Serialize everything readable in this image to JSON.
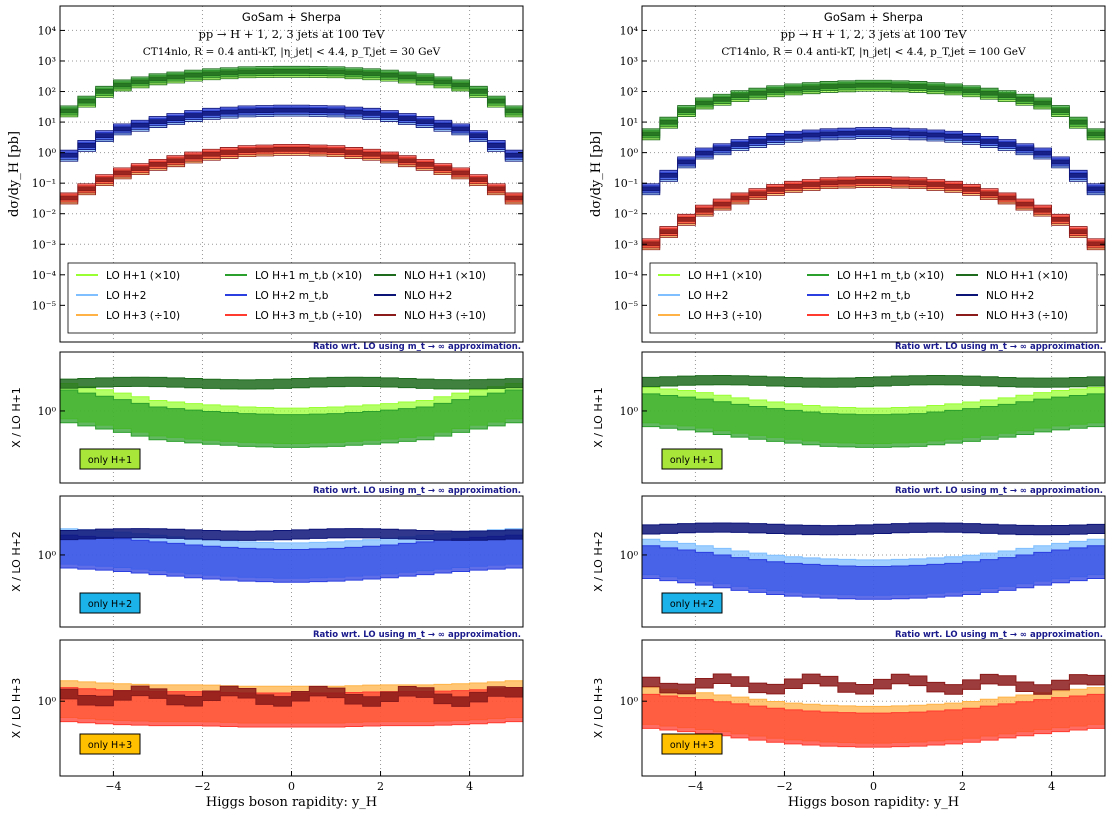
{
  "chart_data": [
    {
      "type": "area",
      "panel": "left",
      "title_lines": [
        "GoSam + Sherpa",
        "pp → H + 1, 2, 3 jets at 100 TeV",
        "CT14nlo, R = 0.4 anti-kT, |η_jet| < 4.4, p_T,jet = 30 GeV"
      ],
      "ylabel": "dσ/dy_H [pb]",
      "xlabel": "Higgs boson rapidity:  y_H",
      "xlim": [
        -5.2,
        5.2
      ],
      "x_ticks": [
        "−4",
        "−2",
        "0",
        "2",
        "4"
      ],
      "y_ticks": [
        "10⁴",
        "10³",
        "10²",
        "10¹",
        "10⁰",
        "10⁻¹",
        "10⁻²",
        "10⁻³",
        "10⁻⁴",
        "10⁻⁵"
      ],
      "log_ylim": [
        -6.2,
        4.8
      ],
      "legend_placement": "bottom",
      "legend": [
        "LO H+1 (×10)",
        "LO H+1 m_t,b (×10)",
        "NLO H+1 (×10)",
        "LO H+2",
        "LO H+2 m_t,b",
        "NLO H+2",
        "LO H+3 (÷10)",
        "LO H+3 m_t,b (÷10)",
        "NLO H+3 (÷10)"
      ],
      "x": [
        -5.0,
        -4.0,
        -3.0,
        -2.0,
        -1.0,
        0.0,
        1.0,
        2.0,
        3.0,
        4.0,
        5.0
      ],
      "series": [
        {
          "name": "NLO H+1 (×10)",
          "log_values": [
            1.35,
            2.15,
            2.4,
            2.55,
            2.63,
            2.65,
            2.63,
            2.55,
            2.4,
            2.15,
            1.35
          ]
        },
        {
          "name": "NLO H+2",
          "log_values": [
            -0.1,
            0.7,
            1.0,
            1.25,
            1.35,
            1.38,
            1.35,
            1.25,
            1.0,
            0.7,
            -0.1
          ]
        },
        {
          "name": "NLO H+3 (÷10)",
          "log_values": [
            -1.5,
            -0.75,
            -0.4,
            -0.1,
            0.05,
            0.1,
            0.05,
            -0.1,
            -0.4,
            -0.75,
            -1.5
          ]
        }
      ],
      "ratio_panels": [
        {
          "ylabel": "X / LO H+1",
          "tag": "only H+1",
          "label": "Ratio wrt. LO using m_t → ∞ approximation.",
          "log_values": [
            0.06,
            0.0,
            -0.07,
            -0.1,
            -0.12,
            -0.13,
            -0.12,
            -0.1,
            -0.07,
            0.0,
            0.06
          ],
          "nlo_ratio": 1.65
        },
        {
          "ylabel": "X / LO H+2",
          "tag": "only H+2",
          "label": "Ratio wrt. LO using m_t → ∞ approximation.",
          "log_values": [
            0.05,
            0.03,
            0.0,
            -0.03,
            -0.05,
            -0.06,
            -0.05,
            -0.03,
            0.0,
            0.03,
            0.05
          ],
          "nlo_ratio": 1.45
        },
        {
          "ylabel": "X / LO H+3",
          "tag": "only H+3",
          "label": "Ratio wrt. LO using m_t → ∞ approximation.",
          "log_values": [
            0.0,
            -0.02,
            -0.03,
            -0.03,
            -0.04,
            -0.04,
            -0.04,
            -0.03,
            -0.03,
            -0.02,
            0.0
          ],
          "nlo_ratio": 1.1
        }
      ]
    },
    {
      "type": "area",
      "panel": "right",
      "title_lines": [
        "GoSam + Sherpa",
        "pp → H + 1, 2, 3 jets at 100 TeV",
        "CT14nlo, R = 0.4 anti-kT, |η_jet| < 4.4, p_T,jet = 100 GeV"
      ],
      "ylabel": "dσ/dy_H [pb]",
      "xlabel": "Higgs boson rapidity:  y_H",
      "xlim": [
        -5.2,
        5.2
      ],
      "x_ticks": [
        "−4",
        "−2",
        "0",
        "2",
        "4"
      ],
      "y_ticks": [
        "10⁴",
        "10³",
        "10²",
        "10¹",
        "10⁰",
        "10⁻¹",
        "10⁻²",
        "10⁻³",
        "10⁻⁴",
        "10⁻⁵"
      ],
      "log_ylim": [
        -6.2,
        4.8
      ],
      "legend_placement": "bottom",
      "legend": [
        "LO H+1 (×10)",
        "LO H+1 m_t,b (×10)",
        "NLO H+1 (×10)",
        "LO H+2",
        "LO H+2 m_t,b",
        "NLO H+2",
        "LO H+3 (÷10)",
        "LO H+3 m_t,b (÷10)",
        "NLO H+3 (÷10)"
      ],
      "x": [
        -5.0,
        -4.0,
        -3.0,
        -2.0,
        -1.0,
        0.0,
        1.0,
        2.0,
        3.0,
        4.0,
        5.0
      ],
      "series": [
        {
          "name": "NLO H+1 (×10)",
          "log_values": [
            0.6,
            1.55,
            1.85,
            2.05,
            2.15,
            2.2,
            2.15,
            2.05,
            1.85,
            1.55,
            0.6
          ]
        },
        {
          "name": "NLO H+2",
          "log_values": [
            -1.2,
            -0.1,
            0.25,
            0.5,
            0.6,
            0.65,
            0.6,
            0.5,
            0.25,
            -0.1,
            -1.2
          ]
        },
        {
          "name": "NLO H+3 (÷10)",
          "log_values": [
            -3.0,
            -2.0,
            -1.5,
            -1.15,
            -1.0,
            -0.95,
            -1.0,
            -1.15,
            -1.5,
            -2.0,
            -3.0
          ]
        }
      ],
      "ratio_panels": [
        {
          "ylabel": "X / LO H+1",
          "tag": "only H+1",
          "label": "Ratio wrt. LO using m_t → ∞ approximation.",
          "log_values": [
            0.03,
            0.0,
            -0.05,
            -0.09,
            -0.12,
            -0.13,
            -0.12,
            -0.09,
            -0.05,
            0.0,
            0.03
          ],
          "nlo_ratio": 1.7
        },
        {
          "ylabel": "X / LO H+2",
          "tag": "only H+2",
          "label": "Ratio wrt. LO using m_t → ∞ approximation.",
          "log_values": [
            -0.03,
            -0.07,
            -0.12,
            -0.16,
            -0.18,
            -0.19,
            -0.18,
            -0.16,
            -0.12,
            -0.07,
            -0.03
          ],
          "nlo_ratio": 1.6
        },
        {
          "ylabel": "X / LO H+3",
          "tag": "only H+3",
          "label": "Ratio wrt. LO using m_t → ∞ approximation.",
          "log_values": [
            -0.05,
            -0.08,
            -0.12,
            -0.16,
            -0.18,
            -0.19,
            -0.18,
            -0.16,
            -0.12,
            -0.08,
            -0.05
          ],
          "nlo_ratio": 1.35
        }
      ]
    }
  ],
  "colors": {
    "h1_light": "#99ff33",
    "h1_mid": "#2ca02c",
    "h1_dark": "#1e6b1e",
    "h2_light": "#7fbfff",
    "h2_mid": "#2b3fe0",
    "h2_dark": "#0d1478",
    "h3_light": "#ffb347",
    "h3_mid": "#ff3b2f",
    "h3_dark": "#8b1a1a",
    "tag_h1": "#a8e63a",
    "tag_h2": "#1ab2e8",
    "tag_h3": "#ffc000"
  }
}
